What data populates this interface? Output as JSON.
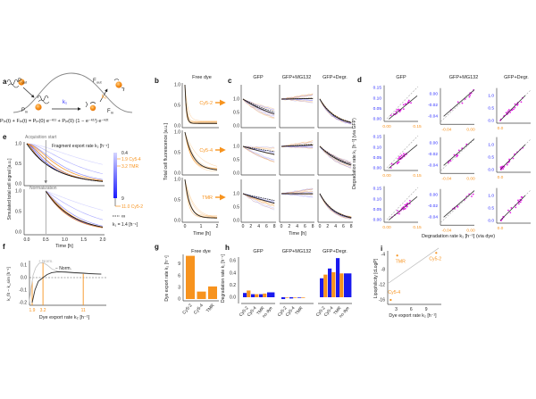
{
  "colors": {
    "orange": "#f7931e",
    "blue": "#2b2bff",
    "magenta": "#e61ee6",
    "axis": "#444444",
    "light_gray": "#c8c8c8"
  },
  "panel_labels": {
    "a": "a",
    "b": "b",
    "c": "c",
    "d": "d",
    "e": "e",
    "f": "f",
    "g": "g",
    "h": "h",
    "i": "i"
  },
  "diagram": {
    "P": "P",
    "F": "F",
    "sub_out": "out",
    "sub_in": "in",
    "k1": "k₁",
    "k2": "k₂",
    "equation": "Pᵢₙ(t) + Fᵢₙ(t) = Pᵢₙ(0) e⁻ᵏ¹ᵗ + Pᵢₙ(0) (1 − e⁻ᵏ¹ᵗ) e⁻ᵏ²ᵗ"
  },
  "chart_data": [
    {
      "panel": "e",
      "type": "line",
      "xlabel": "Time [h]",
      "ylabel": "Simulated total cell signal [a.u.]",
      "xlim": [
        0,
        2
      ],
      "ylim": [
        0,
        1
      ],
      "xticks": [
        0,
        0.5,
        1,
        1.5,
        2
      ],
      "xticklabels": [
        "0.0",
        "0.5",
        "1.0",
        "1.5",
        "2.0"
      ],
      "yticks": [
        0,
        0.5,
        1
      ],
      "yticklabels": [
        "0.0",
        "0.5",
        "1.0"
      ],
      "acquisition_label": "Acquisition start",
      "acquisition_time": 0.5,
      "normalization_label": "Normalization",
      "legend_title": "Fragment export rate k₂ [h⁻¹]",
      "k1": 1.4,
      "k1_label": "k₁ = 1.4 [h⁻¹]",
      "colorbar": {
        "min": 0.4,
        "max": 9,
        "min_label": "0.4",
        "max_label": "9",
        "colors": [
          "#d4d4ff",
          "#1a1aff"
        ]
      },
      "series_k2": [
        0.4,
        0.8,
        1.5,
        3,
        5,
        9
      ],
      "dyes": [
        {
          "k2": 1.9,
          "label": "1.9 Cy5-4"
        },
        {
          "k2": 3.2,
          "label": "3.2 TMR"
        },
        {
          "k2": 11.0,
          "label": "11.0 Cy5-2"
        }
      ],
      "infinite_label": "∞"
    },
    {
      "panel": "f",
      "type": "line",
      "xlabel": "Dye export rate k₂ [h⁻¹]",
      "ylabel": "k_fit − k_sim [h⁻¹]",
      "xlim": [
        1.5,
        17
      ],
      "x_scale": "sqrt",
      "ylim": [
        -0.2,
        0.12
      ],
      "xticks": [
        1.9,
        3.2,
        11
      ],
      "xticklabels": [
        "1.9",
        "3.2",
        "11"
      ],
      "yticks": [
        0.1,
        0,
        -0.1,
        -0.2
      ],
      "yticklabels": [
        "0.1",
        "0.0",
        "-0.1",
        "-0.2"
      ],
      "zero_line": "dashed",
      "series": [
        {
          "name": "+ Norm.",
          "color": "#c0c0c0",
          "x": [
            1.6,
            1.8,
            2.0,
            2.3,
            2.7,
            3.2,
            3.8,
            4.5,
            5.5,
            7,
            9,
            11,
            13,
            16
          ],
          "y": [
            -0.2,
            -0.08,
            0.02,
            0.08,
            0.115,
            0.12,
            0.1,
            0.07,
            0.05,
            0.04,
            0.035,
            0.032,
            0.03,
            0.028
          ]
        },
        {
          "name": "− Norm.",
          "color": "#333333",
          "x": [
            1.9,
            2.2,
            2.6,
            3.2,
            3.8,
            4.5,
            5.5,
            7,
            9,
            11,
            13,
            16
          ],
          "y": [
            -0.2,
            -0.1,
            -0.03,
            0.0,
            0.025,
            0.04,
            0.046,
            0.045,
            0.04,
            0.036,
            0.032,
            0.028
          ]
        }
      ]
    },
    {
      "panel": "b",
      "type": "line",
      "title": "Free dye",
      "xlabel": "Time [h]",
      "ylabel": "Total cell fluorescence [a.u.]",
      "xlim": [
        0,
        2
      ],
      "ylim": [
        0,
        1
      ],
      "xticklabels": [
        "0",
        "1",
        "2"
      ],
      "yticklabels": [
        "0.0",
        "0.5",
        "1.0"
      ],
      "rows": [
        {
          "label": "Cy5-2",
          "k2": 11.0
        },
        {
          "label": "Cy5-4",
          "k2": 1.9
        },
        {
          "label": "TMR",
          "k2": 3.2
        }
      ]
    },
    {
      "panel": "c",
      "type": "line",
      "columns": [
        "GFP",
        "GFP+MG132",
        "GFP+Degr."
      ],
      "xlabel": "Time [h]",
      "xlim": [
        0,
        8
      ],
      "ylim": [
        0,
        1.5
      ],
      "xticklabels": [
        "0",
        "2",
        "4",
        "6",
        "8"
      ],
      "yticklabels": [
        "0.0",
        "0.5",
        "1.0"
      ],
      "rows": [
        "Cy5-2",
        "Cy5-4",
        "TMR"
      ],
      "mean_final_value": [
        [
          0.45,
          1.02,
          0.12
        ],
        [
          0.7,
          1.05,
          0.3
        ],
        [
          0.65,
          1.0,
          0.1
        ]
      ]
    },
    {
      "panel": "d",
      "type": "scatter",
      "columns": [
        "GFP",
        "GFP+MG132",
        "GFP+Degr."
      ],
      "xlabel": "Degradation rate k₁ [h⁻¹] (via dye)",
      "ylabel": "Degradation rate k₁ [h⁻¹] (via GFP)",
      "axes": [
        {
          "lim": [
            0,
            0.16
          ],
          "yticks": [
            0,
            0.05,
            0.1,
            0.15
          ],
          "yticklabels": [
            "0.00",
            "0.05",
            "0.10",
            "0.15"
          ],
          "xticks": [
            0,
            0.15
          ],
          "xticklabels": [
            "0.00",
            "0.15"
          ]
        },
        {
          "lim": [
            -0.05,
            0.01
          ],
          "yticks": [
            -0.04,
            -0.02,
            0
          ],
          "yticklabels": [
            "-0.04",
            "-0.02",
            "0.00"
          ],
          "xticks": [
            -0.04,
            0
          ],
          "xticklabels": [
            "-0.04",
            "0.00"
          ]
        },
        {
          "lim": [
            0,
            1.3
          ],
          "yticks": [
            0,
            0.5,
            1.0
          ],
          "yticklabels": [
            "0.0",
            "0.5",
            "1.0"
          ],
          "xticks": [
            0
          ],
          "xticklabels": [
            "0.0"
          ]
        }
      ],
      "identity_line": "dashed gray",
      "fit_line": "black"
    },
    {
      "panel": "g",
      "type": "bar",
      "title": "Free dye",
      "categories": [
        "Cy5-2",
        "Cy5-4",
        "TMR"
      ],
      "values": [
        11.0,
        1.9,
        3.2
      ],
      "ylabel": "Dye export rate k₂ [h⁻¹]",
      "ylim": [
        0,
        11
      ],
      "yticks": [
        0,
        3,
        6,
        9
      ],
      "yticklabels": [
        "0",
        "3",
        "6",
        "9"
      ]
    },
    {
      "panel": "h",
      "type": "bar",
      "ylabel": "Degradation rate k₁ [h⁻¹]",
      "ylim": [
        -0.05,
        0.65
      ],
      "yticks": [
        0,
        0.2,
        0.4,
        0.6
      ],
      "yticklabels": [
        "0.0",
        "0.2",
        "0.4",
        "0.6"
      ],
      "groups": [
        {
          "title": "GFP",
          "categories": [
            "Cy5-2",
            "Cy5-4",
            "TMR",
            "no dye"
          ],
          "via_gfp": [
            0.07,
            0.05,
            0.05,
            0.08
          ],
          "via_dye": [
            0.11,
            0.05,
            0.06,
            null
          ]
        },
        {
          "title": "GFP+MG132",
          "categories": [
            "Cy5-2",
            "Cy5-4",
            "TMR"
          ],
          "via_gfp": [
            -0.03,
            -0.02,
            -0.01
          ],
          "via_dye": [
            -0.01,
            -0.01,
            -0.01
          ]
        },
        {
          "title": "GFP+Degr.",
          "categories": [
            "Cy5-2",
            "Cy5-4",
            "TMR",
            "no dye"
          ],
          "via_gfp": [
            0.31,
            0.47,
            0.64,
            0.39
          ],
          "via_dye": [
            0.37,
            0.41,
            0.39,
            null
          ]
        }
      ],
      "series_colors": {
        "via_gfp": "#1a1aee",
        "via_dye": "#f7931e"
      }
    },
    {
      "panel": "i",
      "type": "scatter",
      "xlabel": "Dye export rate k₂ [h⁻¹]",
      "ylabel": "Lipophilicity [cLogP]",
      "xlim": [
        1.3,
        12
      ],
      "ylim": [
        -16.5,
        -3
      ],
      "xticks": [
        3,
        6,
        9
      ],
      "xticklabels": [
        "3",
        "6",
        "9"
      ],
      "yticks": [
        -4,
        -8,
        -12,
        -16
      ],
      "yticklabels": [
        "-4",
        "-8",
        "-12",
        "-16"
      ],
      "points": [
        {
          "label": "TMR",
          "x": 3.2,
          "y": -4.3
        },
        {
          "label": "Cy5-2",
          "x": 11.0,
          "y": -3.6
        },
        {
          "label": "Cy5-4",
          "x": 1.9,
          "y": -16.0
        }
      ],
      "trend_line": "gray"
    }
  ]
}
